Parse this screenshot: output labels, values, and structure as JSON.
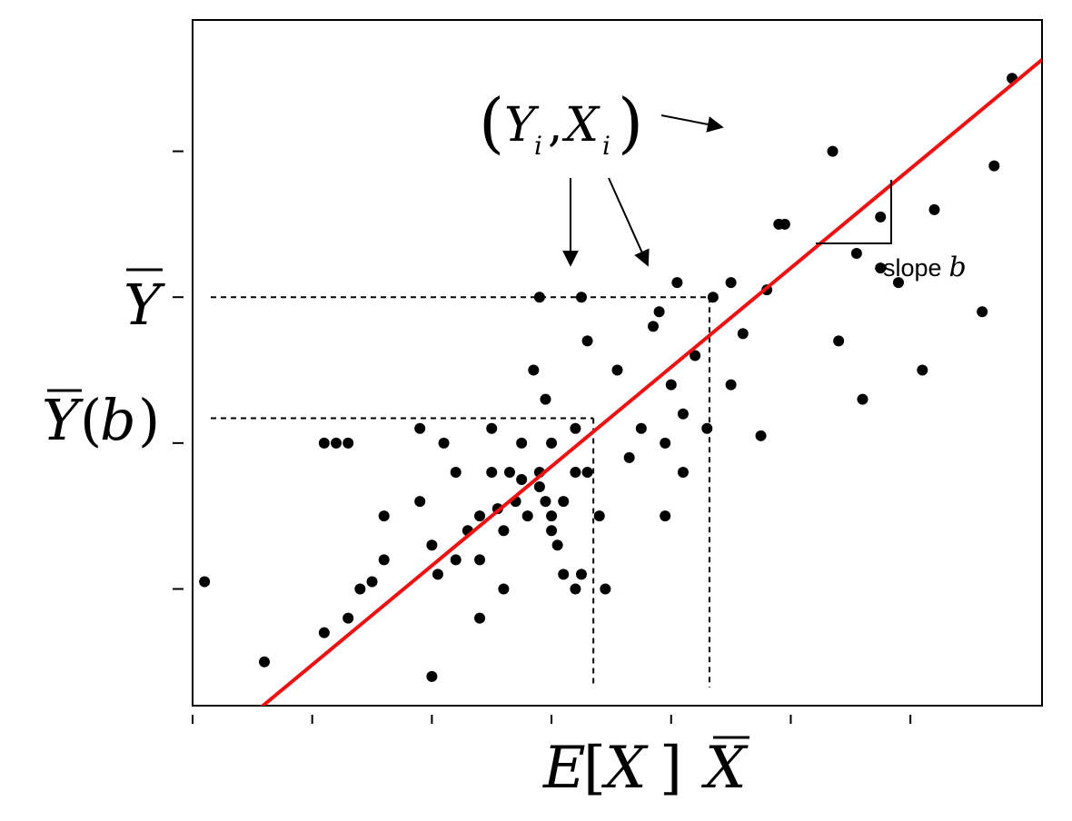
{
  "chart_data": {
    "type": "scatter",
    "title": "",
    "xlabel": "",
    "ylabel": "",
    "xlim": [
      0,
      7.1
    ],
    "ylim": [
      0,
      4.7
    ],
    "grid": false,
    "x_ticks": [
      0,
      1,
      2,
      3,
      4,
      5,
      6
    ],
    "y_ticks": [
      0.8,
      1.8,
      2.8,
      3.8
    ],
    "points": [
      [
        0.1,
        0.85
      ],
      [
        0.6,
        0.3
      ],
      [
        1.1,
        0.5
      ],
      [
        1.3,
        0.6
      ],
      [
        1.4,
        0.8
      ],
      [
        1.2,
        1.8
      ],
      [
        1.3,
        1.8
      ],
      [
        1.1,
        1.8
      ],
      [
        1.5,
        0.85
      ],
      [
        1.6,
        1.0
      ],
      [
        1.6,
        1.3
      ],
      [
        1.9,
        1.4
      ],
      [
        1.9,
        1.9
      ],
      [
        2.0,
        0.2
      ],
      [
        2.0,
        1.1
      ],
      [
        2.05,
        0.9
      ],
      [
        2.1,
        1.8
      ],
      [
        2.2,
        1.6
      ],
      [
        2.2,
        1.0
      ],
      [
        2.3,
        1.2
      ],
      [
        2.4,
        1.3
      ],
      [
        2.4,
        1.0
      ],
      [
        2.4,
        0.6
      ],
      [
        2.5,
        1.6
      ],
      [
        2.5,
        1.9
      ],
      [
        2.55,
        1.35
      ],
      [
        2.6,
        0.8
      ],
      [
        2.6,
        1.2
      ],
      [
        2.65,
        1.6
      ],
      [
        2.7,
        1.4
      ],
      [
        2.75,
        1.8
      ],
      [
        2.8,
        1.3
      ],
      [
        2.9,
        1.6
      ],
      [
        2.95,
        1.4
      ],
      [
        2.9,
        2.8
      ],
      [
        2.95,
        2.1
      ],
      [
        3.0,
        1.8
      ],
      [
        3.0,
        1.3
      ],
      [
        3.0,
        1.2
      ],
      [
        3.05,
        1.1
      ],
      [
        3.1,
        0.9
      ],
      [
        3.1,
        1.4
      ],
      [
        3.2,
        1.6
      ],
      [
        3.2,
        0.8
      ],
      [
        3.25,
        0.9
      ],
      [
        3.2,
        1.9
      ],
      [
        3.25,
        2.8
      ],
      [
        3.3,
        1.6
      ],
      [
        3.3,
        2.5
      ],
      [
        3.4,
        1.3
      ],
      [
        3.45,
        0.8
      ],
      [
        3.55,
        2.3
      ],
      [
        3.65,
        1.7
      ],
      [
        3.75,
        1.9
      ],
      [
        3.85,
        2.6
      ],
      [
        3.95,
        1.8
      ],
      [
        3.95,
        1.3
      ],
      [
        4.0,
        2.2
      ],
      [
        4.05,
        2.9
      ],
      [
        4.1,
        1.6
      ],
      [
        4.1,
        2.0
      ],
      [
        4.2,
        2.4
      ],
      [
        4.3,
        1.9
      ],
      [
        4.35,
        2.8
      ],
      [
        4.5,
        2.9
      ],
      [
        4.6,
        2.55
      ],
      [
        4.75,
        1.85
      ],
      [
        4.8,
        2.85
      ],
      [
        4.9,
        3.3
      ],
      [
        4.95,
        3.3
      ],
      [
        5.35,
        3.8
      ],
      [
        5.4,
        2.5
      ],
      [
        5.55,
        3.1
      ],
      [
        5.6,
        2.1
      ],
      [
        5.75,
        3.0
      ],
      [
        5.75,
        3.35
      ],
      [
        6.2,
        3.4
      ],
      [
        6.1,
        2.3
      ],
      [
        5.9,
        2.9
      ],
      [
        6.7,
        3.7
      ],
      [
        6.85,
        4.3
      ],
      [
        6.6,
        2.7
      ],
      [
        4.5,
        2.2
      ],
      [
        3.9,
        2.7
      ],
      [
        2.9,
        1.5
      ],
      [
        2.85,
        2.3
      ],
      [
        2.75,
        1.55
      ]
    ],
    "fit_line": {
      "intercept": -0.4,
      "slope": 0.68
    },
    "reference_lines": [
      {
        "x": 3.35,
        "y": 1.97
      },
      {
        "x": 4.32,
        "y": 2.8
      }
    ],
    "annotations": {
      "point_label": "(Yi, Xi)",
      "point_label_var_y": "Y",
      "point_label_var_x": "X",
      "point_label_sub": "i",
      "slope_word": "slope",
      "slope_var": "b",
      "y_mean_label": "Ȳ",
      "y_mean_b_label": "Ȳ(b)",
      "x_expect_label": "E[X]",
      "x_mean_label": "X̄"
    },
    "colors": {
      "fit_line": "#ee1111",
      "points": "#000000",
      "reference": "#000000"
    }
  }
}
